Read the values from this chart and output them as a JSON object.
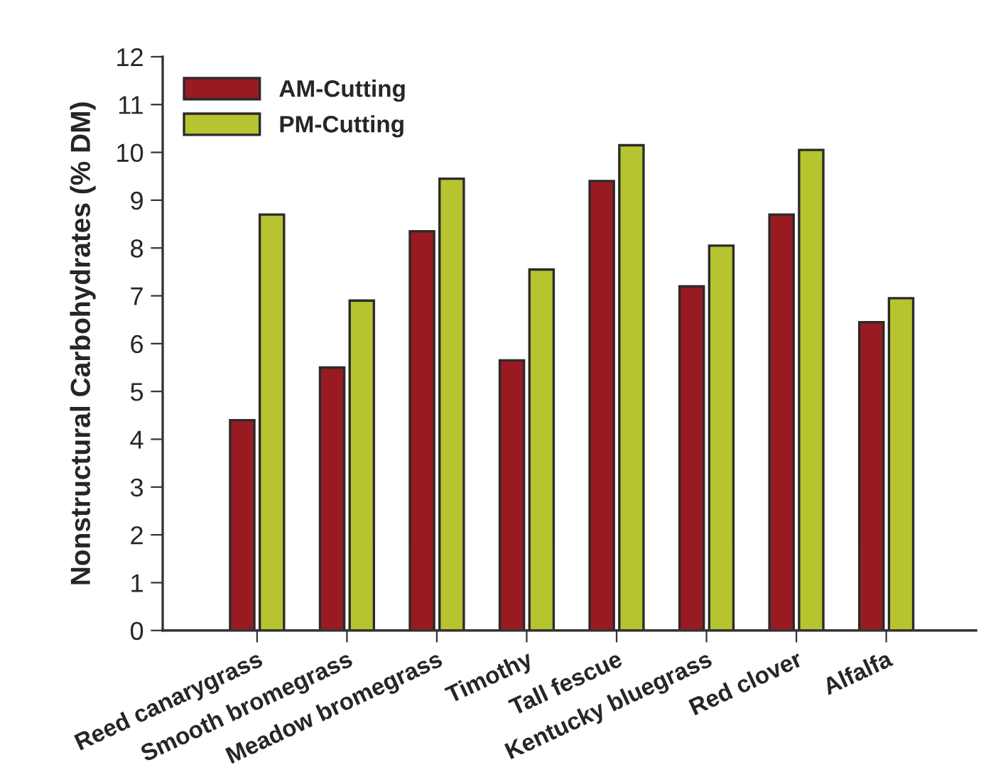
{
  "chart_data": {
    "type": "bar",
    "ylabel": "Nonstructural Carbohydrates (% DM)",
    "categories": [
      "Reed canarygrass",
      "Smooth bromegrass",
      "Meadow bromegrass",
      "Timothy",
      "Tall fescue",
      "Kentucky bluegrass",
      "Red clover",
      "Alfalfa"
    ],
    "series": [
      {
        "name": "AM-Cutting",
        "color": "#971b20",
        "values": [
          4.4,
          5.5,
          8.35,
          5.65,
          9.4,
          7.2,
          8.7,
          6.45
        ]
      },
      {
        "name": "PM-Cutting",
        "color": "#b5c42f",
        "values": [
          8.7,
          6.9,
          9.45,
          7.55,
          10.15,
          8.05,
          10.05,
          6.95
        ]
      }
    ],
    "ylim": [
      0,
      12
    ],
    "yticks": [
      0,
      1,
      2,
      3,
      4,
      5,
      6,
      7,
      8,
      9,
      10,
      11,
      12
    ],
    "grid": false,
    "legend": "top left"
  }
}
